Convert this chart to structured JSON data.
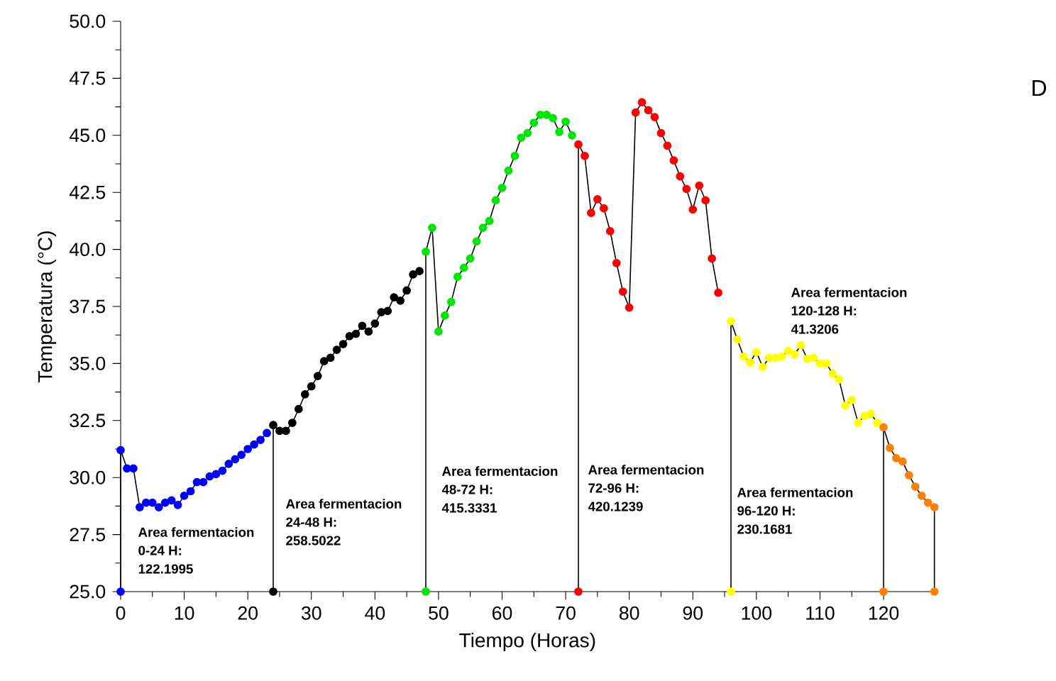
{
  "chart_data": {
    "type": "line",
    "xlabel": "Tiempo (Horas)",
    "ylabel": "Temperatura (°C)",
    "xlim": [
      0,
      128
    ],
    "ylim": [
      25,
      50
    ],
    "xticks": [
      0,
      10,
      20,
      30,
      40,
      50,
      60,
      70,
      80,
      90,
      100,
      110,
      120
    ],
    "yticks": [
      {
        "value": 25,
        "label": "25.0"
      },
      {
        "value": 27.5,
        "label": "27.5"
      },
      {
        "value": 30,
        "label": "30.0"
      },
      {
        "value": 32.5,
        "label": "32.5"
      },
      {
        "value": 35,
        "label": "35.0"
      },
      {
        "value": 37.5,
        "label": "37.5"
      },
      {
        "value": 40,
        "label": "40.0"
      },
      {
        "value": 42.5,
        "label": "42.5"
      },
      {
        "value": 45,
        "label": "45.0"
      },
      {
        "value": 47.5,
        "label": "47.5"
      },
      {
        "value": 50,
        "label": "50.0"
      }
    ],
    "marker": "circle",
    "series": [
      {
        "color": "#0000ff",
        "x": [
          0,
          0,
          1,
          2,
          3,
          4,
          5,
          6,
          7,
          8,
          9,
          10,
          11,
          12,
          13,
          14,
          15,
          16,
          17,
          18,
          19,
          20,
          21,
          22,
          23
        ],
        "values": [
          25,
          31.2,
          30.4,
          30.4,
          28.7,
          28.9,
          28.9,
          28.7,
          28.9,
          29.0,
          28.8,
          29.2,
          29.4,
          29.8,
          29.8,
          30.05,
          30.15,
          30.3,
          30.6,
          30.8,
          31.0,
          31.25,
          31.45,
          31.65,
          31.95
        ]
      },
      {
        "color": "#000000",
        "x": [
          24,
          24,
          25,
          26,
          27,
          28,
          29,
          30,
          31,
          32,
          33,
          34,
          35,
          36,
          37,
          38,
          39,
          40,
          41,
          42,
          43,
          44,
          45,
          46,
          47
        ],
        "values": [
          25,
          32.3,
          32.05,
          32.05,
          32.4,
          33.0,
          33.65,
          34.0,
          34.45,
          35.1,
          35.25,
          35.6,
          35.85,
          36.2,
          36.3,
          36.65,
          36.4,
          36.75,
          37.25,
          37.3,
          37.9,
          37.75,
          38.2,
          38.9,
          39.05
        ]
      },
      {
        "color": "#00e600",
        "x": [
          48,
          48,
          49,
          50,
          51,
          52,
          53,
          54,
          55,
          56,
          57,
          58,
          59,
          60,
          61,
          62,
          63,
          64,
          65,
          66,
          67,
          68,
          69,
          70,
          71
        ],
        "values": [
          25,
          39.9,
          40.95,
          36.4,
          37.1,
          37.7,
          38.8,
          39.2,
          39.6,
          40.35,
          40.95,
          41.25,
          42.15,
          42.7,
          43.45,
          44.1,
          44.9,
          45.1,
          45.55,
          45.9,
          45.9,
          45.75,
          45.15,
          45.6,
          45.0
        ]
      },
      {
        "color": "#ff0000",
        "x": [
          72,
          72,
          73,
          74,
          75,
          76,
          77,
          78,
          79,
          80,
          81,
          82,
          83,
          84,
          85,
          86,
          87,
          88,
          89,
          90,
          91,
          92,
          93,
          94
        ],
        "values": [
          25,
          44.6,
          44.1,
          41.6,
          42.2,
          41.8,
          40.8,
          39.4,
          38.15,
          37.45,
          46.0,
          46.45,
          46.1,
          45.8,
          45.1,
          44.55,
          43.9,
          43.2,
          42.65,
          41.75,
          42.8,
          42.15,
          39.6,
          38.1
        ]
      },
      {
        "color": "#ffff00",
        "x": [
          96,
          96,
          97,
          98,
          99,
          100,
          101,
          102,
          103,
          104,
          105,
          106,
          107,
          108,
          109,
          110,
          111,
          112,
          113,
          114,
          115,
          116,
          117,
          118,
          119
        ],
        "values": [
          25,
          36.85,
          36.05,
          35.3,
          35.05,
          35.5,
          34.85,
          35.25,
          35.25,
          35.3,
          35.55,
          35.4,
          35.8,
          35.2,
          35.25,
          35.0,
          35.0,
          34.55,
          34.3,
          33.15,
          33.4,
          32.4,
          32.7,
          32.8,
          32.4
        ]
      },
      {
        "color": "#ff8000",
        "x": [
          120,
          120,
          121,
          122,
          123,
          124,
          125,
          126,
          127,
          128,
          128
        ],
        "values": [
          25,
          32.2,
          31.3,
          30.85,
          30.7,
          30.1,
          29.6,
          29.2,
          28.9,
          28.7,
          25
        ]
      }
    ],
    "annotations": [
      "Area fermentacion",
      "0-24 H:",
      "122.1995",
      "Area fermentacion",
      "24-48 H:",
      "258.5022",
      "Area fermentacion",
      "48-72 H:",
      "415.3331",
      "Area fermentacion",
      "72-96 H:",
      "420.1239",
      "Area fermentacion",
      "96-120 H:",
      "230.1681",
      "Area fermentacion",
      "120-128 H:",
      "41.3206",
      "D"
    ]
  }
}
